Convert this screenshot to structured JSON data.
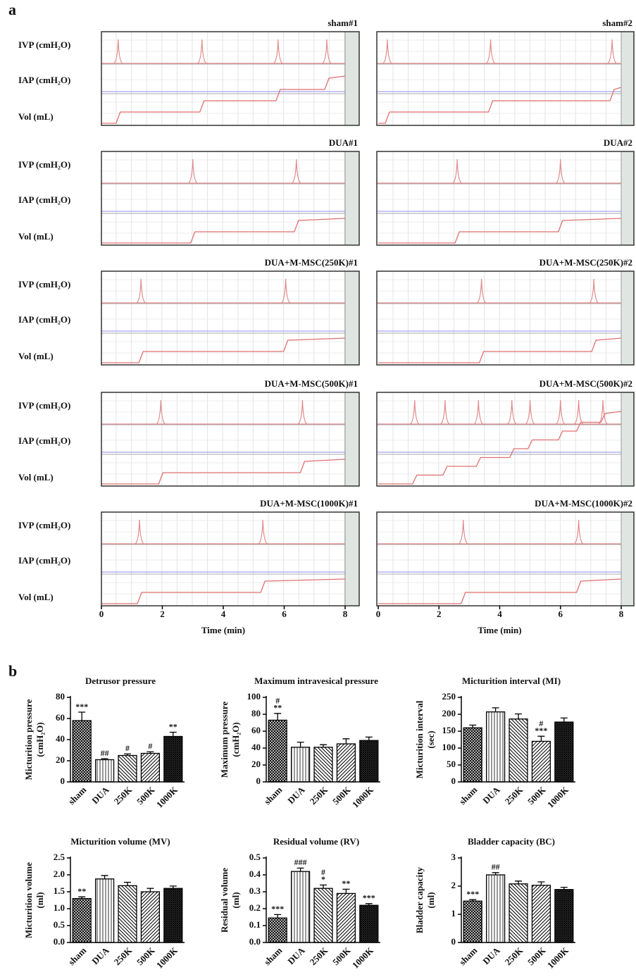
{
  "panel_labels": [
    "a",
    "b"
  ],
  "panel_a": {
    "row_labels": [
      "IVP (cmH₂O)",
      "IAP (cmH₂O)",
      "Vol (mL)"
    ],
    "x_label": "Time (min)",
    "xlim": [
      0,
      8
    ],
    "xticks": [
      0,
      2,
      4,
      6,
      8
    ],
    "traces": [
      {
        "title": "sham#1",
        "peaks": [
          0.55,
          3.3,
          5.8,
          7.4
        ]
      },
      {
        "title": "sham#2",
        "peaks": [
          0.3,
          3.7,
          7.7
        ]
      },
      {
        "title": "DUA#1",
        "peaks": [
          3.0,
          6.4
        ]
      },
      {
        "title": "DUA#2",
        "peaks": [
          2.6,
          6.0
        ]
      },
      {
        "title": "DUA+M-MSC(250K)#1",
        "peaks": [
          1.3,
          6.05
        ]
      },
      {
        "title": "DUA+M-MSC(250K)#2",
        "peaks": [
          3.4,
          7.1
        ]
      },
      {
        "title": "DUA+M-MSC(500K)#1",
        "peaks": [
          1.95,
          6.6
        ]
      },
      {
        "title": "DUA+M-MSC(500K)#2",
        "peaks": [
          1.2,
          2.2,
          3.3,
          4.4,
          5.0,
          6.0,
          6.6,
          7.4
        ]
      },
      {
        "title": "DUA+M-MSC(1000K)#1",
        "peaks": [
          1.25,
          5.3
        ]
      },
      {
        "title": "DUA+M-MSC(1000K)#2",
        "peaks": [
          2.8,
          6.6
        ]
      }
    ]
  },
  "chart_data": [
    {
      "type": "bar",
      "title": "Detrusor pressure",
      "ylabel": [
        "Micturition pressure",
        "(cmH₂O)"
      ],
      "categories": [
        "sham",
        "DUA",
        "250K",
        "500K",
        "1000K"
      ],
      "values": [
        58,
        21,
        25,
        27,
        43
      ],
      "errors": [
        8,
        1,
        1.5,
        1.5,
        4
      ],
      "annotations": [
        [
          "***"
        ],
        [
          "##"
        ],
        [
          "#"
        ],
        [
          "#"
        ],
        [
          "**"
        ]
      ],
      "ylim": [
        0,
        80
      ],
      "yticks": [
        0,
        20,
        40,
        60,
        80
      ]
    },
    {
      "type": "bar",
      "title": "Maximum intravesical pressure",
      "ylabel": [
        "Maximum pressure",
        "(cmH₂O)"
      ],
      "categories": [
        "sham",
        "DUA",
        "250K",
        "500K",
        "1000K"
      ],
      "values": [
        73,
        41,
        41,
        45,
        49
      ],
      "errors": [
        8,
        6,
        3,
        6,
        4
      ],
      "annotations": [
        [
          "#",
          "**"
        ],
        [],
        [],
        [],
        []
      ],
      "ylim": [
        0,
        100
      ],
      "yticks": [
        0,
        20,
        40,
        60,
        80,
        100
      ]
    },
    {
      "type": "bar",
      "title": "Micturition interval (MI)",
      "ylabel": [
        "Micturition interval",
        "(sec)"
      ],
      "categories": [
        "sham",
        "DUA",
        "250K",
        "500K",
        "1000K"
      ],
      "values": [
        160,
        207,
        186,
        120,
        177
      ],
      "errors": [
        8,
        12,
        15,
        15,
        12
      ],
      "annotations": [
        [],
        [],
        [],
        [
          "#",
          "***"
        ],
        []
      ],
      "ylim": [
        0,
        250
      ],
      "yticks": [
        0,
        50,
        100,
        150,
        200,
        250
      ]
    },
    {
      "type": "bar",
      "title": "Micturition volume (MV)",
      "ylabel": [
        "Micturition volume",
        "(ml)"
      ],
      "categories": [
        "sham",
        "DUA",
        "250K",
        "500K",
        "1000K"
      ],
      "values": [
        1.3,
        1.88,
        1.68,
        1.5,
        1.6
      ],
      "errors": [
        0.05,
        0.1,
        0.1,
        0.1,
        0.07
      ],
      "annotations": [
        [
          "**"
        ],
        [],
        [],
        [],
        []
      ],
      "ylim": [
        0,
        2.5
      ],
      "yticks": [
        {
          "value": 0,
          "label": "0.0"
        },
        {
          "value": 0.5,
          "label": "0.5"
        },
        {
          "value": 1,
          "label": "1.0"
        },
        {
          "value": 1.5,
          "label": "1.5"
        },
        {
          "value": 2,
          "label": "2.0"
        },
        {
          "value": 2.5,
          "label": "2.5"
        }
      ]
    },
    {
      "type": "bar",
      "title": "Residual volume (RV)",
      "ylabel": [
        "Residual volume",
        "(ml)"
      ],
      "categories": [
        "sham",
        "DUA",
        "250K",
        "500K",
        "1000K"
      ],
      "values": [
        0.145,
        0.42,
        0.32,
        0.29,
        0.22
      ],
      "errors": [
        0.02,
        0.02,
        0.02,
        0.025,
        0.01
      ],
      "annotations": [
        [
          "***"
        ],
        [
          "###"
        ],
        [
          "#",
          "*"
        ],
        [
          "**"
        ],
        [
          "***"
        ]
      ],
      "ylim": [
        0,
        0.5
      ],
      "yticks": [
        {
          "value": 0,
          "label": "0.0"
        },
        0.1,
        0.2,
        0.3,
        0.4,
        0.5
      ]
    },
    {
      "type": "bar",
      "title": "Bladder capacity (BC)",
      "ylabel": [
        "Bladder capacity",
        "(ml)"
      ],
      "categories": [
        "sham",
        "DUA",
        "250K",
        "500K",
        "1000K"
      ],
      "values": [
        1.47,
        2.4,
        2.08,
        2.03,
        1.88
      ],
      "errors": [
        0.05,
        0.08,
        0.1,
        0.12,
        0.08
      ],
      "annotations": [
        [
          "***"
        ],
        [
          "##"
        ],
        [],
        [],
        []
      ],
      "ylim": [
        0,
        3
      ],
      "yticks": [
        0,
        1,
        2,
        3
      ]
    }
  ]
}
